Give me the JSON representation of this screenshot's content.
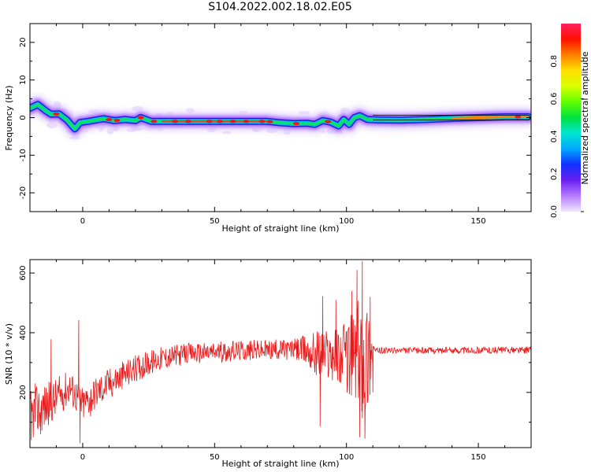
{
  "title": "S104.2022.002.18.02.E05",
  "chart_data": [
    {
      "type": "heatmap",
      "xlabel": "Height of straight line (km)",
      "ylabel": "Frequency (Hz)",
      "xlim": [
        -20,
        170
      ],
      "ylim": [
        -25,
        25
      ],
      "x_ticks": [
        0,
        50,
        100,
        150
      ],
      "y_ticks": [
        -20,
        -10,
        0,
        10,
        20
      ],
      "colorbar": {
        "label": "Normalized spectral amplitude",
        "range": [
          0,
          1
        ],
        "ticks": [
          0.0,
          0.2,
          0.4,
          0.6,
          0.8
        ],
        "colors": [
          "#f0e8ff",
          "#b67cff",
          "#6a1ff0",
          "#1030ff",
          "#00a8ff",
          "#00e6d2",
          "#00e040",
          "#60ff00",
          "#d8ff00",
          "#ffe000",
          "#ff8000",
          "#ff1000",
          "#ff2060"
        ]
      },
      "ridge": [
        {
          "x": -20,
          "y": 2.5
        },
        {
          "x": -17,
          "y": 3.5
        },
        {
          "x": -14,
          "y": 1.8
        },
        {
          "x": -12,
          "y": 0.9
        },
        {
          "x": -9,
          "y": 1.0
        },
        {
          "x": -6,
          "y": -0.6
        },
        {
          "x": -3,
          "y": -3.0
        },
        {
          "x": -1,
          "y": -1.3
        },
        {
          "x": 2,
          "y": -1.0
        },
        {
          "x": 6,
          "y": -0.5
        },
        {
          "x": 8,
          "y": -0.3
        },
        {
          "x": 12,
          "y": -0.8
        },
        {
          "x": 16,
          "y": -0.5
        },
        {
          "x": 20,
          "y": -0.8
        },
        {
          "x": 22,
          "y": 0.0
        },
        {
          "x": 26,
          "y": -1.0
        },
        {
          "x": 30,
          "y": -1.0
        },
        {
          "x": 40,
          "y": -1.0
        },
        {
          "x": 50,
          "y": -1.0
        },
        {
          "x": 60,
          "y": -1.0
        },
        {
          "x": 70,
          "y": -1.0
        },
        {
          "x": 74,
          "y": -1.3
        },
        {
          "x": 80,
          "y": -1.6
        },
        {
          "x": 85,
          "y": -1.5
        },
        {
          "x": 88,
          "y": -1.8
        },
        {
          "x": 91,
          "y": -0.8
        },
        {
          "x": 94,
          "y": -1.2
        },
        {
          "x": 97,
          "y": -2.2
        },
        {
          "x": 99,
          "y": -0.5
        },
        {
          "x": 101,
          "y": -1.8
        },
        {
          "x": 103,
          "y": 0.0
        },
        {
          "x": 105,
          "y": 0.5
        },
        {
          "x": 108,
          "y": -0.5
        },
        {
          "x": 112,
          "y": -0.6
        },
        {
          "x": 120,
          "y": -0.7
        },
        {
          "x": 130,
          "y": -0.5
        },
        {
          "x": 140,
          "y": -0.2
        },
        {
          "x": 150,
          "y": 0.0
        },
        {
          "x": 160,
          "y": 0.2
        },
        {
          "x": 169,
          "y": 0.2
        }
      ],
      "hot_spots_x": [
        -10,
        10,
        13,
        22,
        27,
        35,
        40,
        48,
        52,
        57,
        62,
        68,
        71,
        81,
        93,
        165
      ]
    },
    {
      "type": "line",
      "xlabel": "Height of straight line (km)",
      "ylabel": "SNR (10 * v/v)",
      "xlim": [
        -20,
        170
      ],
      "ylim": [
        15,
        645
      ],
      "x_ticks": [
        0,
        50,
        100,
        150
      ],
      "y_ticks": [
        200,
        400,
        600
      ],
      "color": "#e8191a",
      "envelope": [
        {
          "x": -20,
          "base": 120,
          "amp": 90
        },
        {
          "x": -15,
          "base": 150,
          "amp": 80
        },
        {
          "x": -10,
          "base": 180,
          "amp": 70
        },
        {
          "x": -5,
          "base": 220,
          "amp": 60
        },
        {
          "x": 0,
          "base": 160,
          "amp": 60
        },
        {
          "x": 5,
          "base": 200,
          "amp": 55
        },
        {
          "x": 10,
          "base": 230,
          "amp": 55
        },
        {
          "x": 20,
          "base": 280,
          "amp": 45
        },
        {
          "x": 30,
          "base": 315,
          "amp": 40
        },
        {
          "x": 40,
          "base": 330,
          "amp": 35
        },
        {
          "x": 50,
          "base": 335,
          "amp": 35
        },
        {
          "x": 60,
          "base": 340,
          "amp": 35
        },
        {
          "x": 70,
          "base": 342,
          "amp": 35
        },
        {
          "x": 80,
          "base": 345,
          "amp": 35
        },
        {
          "x": 85,
          "base": 340,
          "amp": 55
        },
        {
          "x": 90,
          "base": 330,
          "amp": 90
        },
        {
          "x": 95,
          "base": 330,
          "amp": 90
        },
        {
          "x": 100,
          "base": 320,
          "amp": 120
        },
        {
          "x": 104,
          "base": 320,
          "amp": 200
        },
        {
          "x": 108,
          "base": 320,
          "amp": 220
        },
        {
          "x": 110,
          "base": 340,
          "amp": 60
        },
        {
          "x": 111,
          "base": 340,
          "amp": 10
        },
        {
          "x": 170,
          "base": 342,
          "amp": 12
        }
      ],
      "spikes": [
        {
          "x": -19.5,
          "y": 40
        },
        {
          "x": -18,
          "y": 230
        },
        {
          "x": -16,
          "y": 60
        },
        {
          "x": -12,
          "y": 378
        },
        {
          "x": -11,
          "y": 150
        },
        {
          "x": -1.5,
          "y": 442
        },
        {
          "x": -1,
          "y": 30
        },
        {
          "x": 3,
          "y": 120
        },
        {
          "x": 89,
          "y": 332
        },
        {
          "x": 90,
          "y": 85
        },
        {
          "x": 91,
          "y": 522
        },
        {
          "x": 96,
          "y": 510
        },
        {
          "x": 102,
          "y": 540
        },
        {
          "x": 104,
          "y": 610
        },
        {
          "x": 105,
          "y": 50
        },
        {
          "x": 106,
          "y": 640
        },
        {
          "x": 107,
          "y": 45
        },
        {
          "x": 109,
          "y": 520
        },
        {
          "x": 110,
          "y": 200
        }
      ]
    }
  ]
}
